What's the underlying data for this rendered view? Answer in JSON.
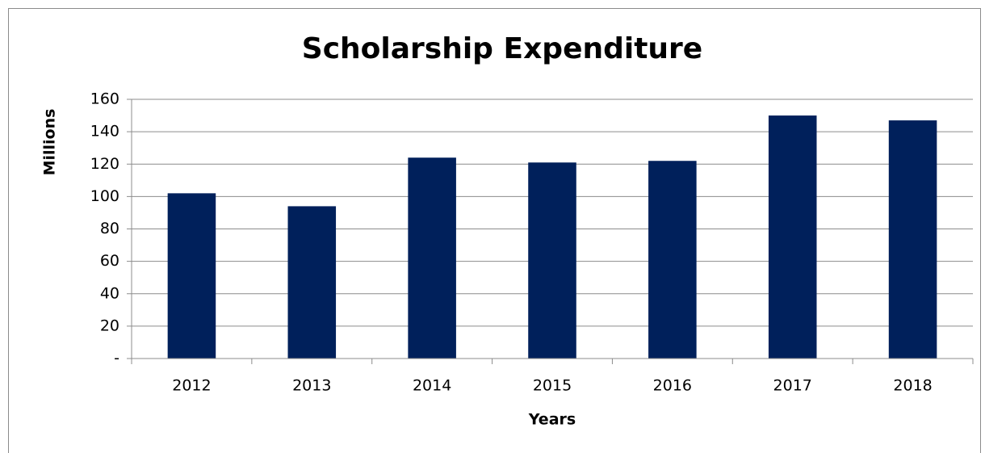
{
  "chart_data": {
    "type": "bar",
    "title": "Scholarship Expenditure",
    "x_label": "Years",
    "y_label": "Millions",
    "categories": [
      "2012",
      "2013",
      "2014",
      "2015",
      "2016",
      "2017",
      "2018"
    ],
    "values": [
      102,
      94,
      124,
      121,
      122,
      150,
      147
    ],
    "color": "#00205b",
    "ylim": [
      0,
      160
    ],
    "yticks": [
      {
        "value": 0,
        "label": "-"
      },
      20,
      40,
      60,
      80,
      100,
      120,
      140,
      160
    ],
    "grid": true
  }
}
